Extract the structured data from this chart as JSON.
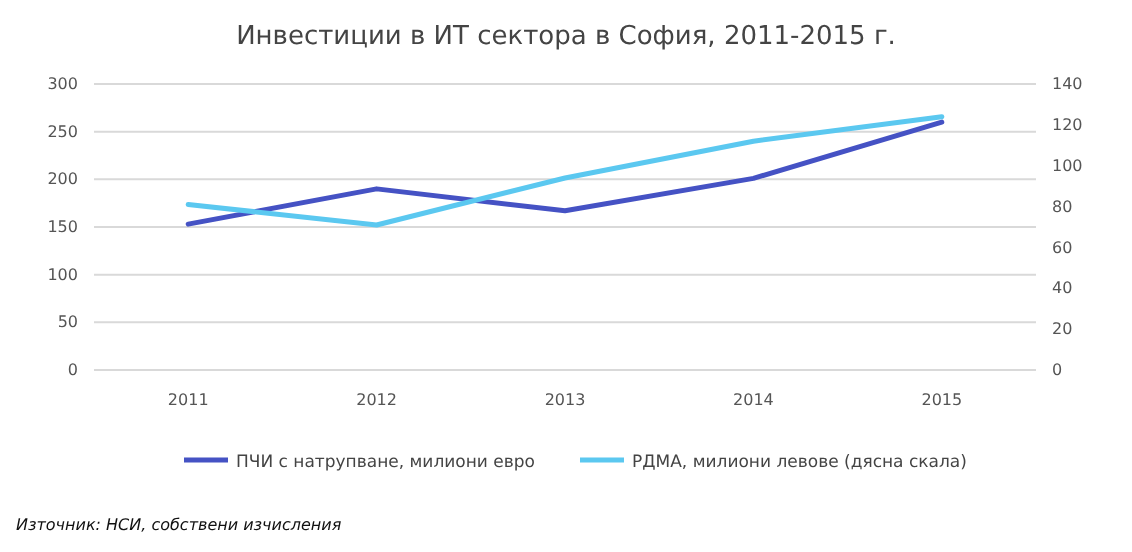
{
  "chart_data": {
    "type": "line",
    "title": "Инвестиции в ИТ сектора в София, 2011-2015 г.",
    "categories": [
      "2011",
      "2012",
      "2013",
      "2014",
      "2015"
    ],
    "series": [
      {
        "name": "ПЧИ с натрупване, милиони евро",
        "color": "#4552c4",
        "values": [
          153,
          190,
          167,
          201,
          260
        ]
      },
      {
        "name": "РДМА, милиони левове (дясна скала)",
        "color": "#5bc8f0",
        "values": [
          81,
          71,
          94,
          112,
          124
        ],
        "axis": "y2"
      }
    ],
    "ylim": [
      0,
      300
    ],
    "yticks": [
      0,
      50,
      100,
      150,
      200,
      250,
      300
    ],
    "y2lim": [
      0,
      140
    ],
    "y2ticks": [
      0,
      20,
      40,
      60,
      80,
      100,
      120,
      140
    ],
    "grid": "y",
    "legend": "bottom",
    "marker": "none",
    "line_style": "solid",
    "annotations": [
      "Източник: НСИ, собствени изчисления"
    ]
  }
}
